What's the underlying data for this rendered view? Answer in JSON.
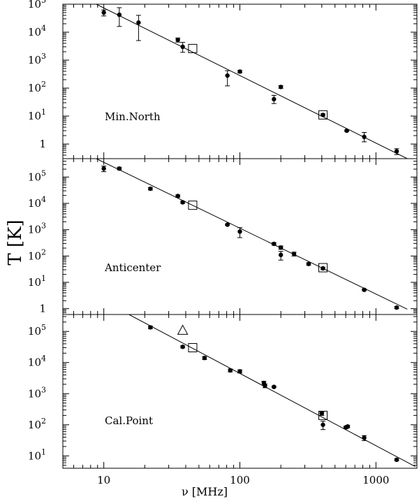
{
  "figure": {
    "ylabel": "T [K]",
    "xlabel": "ν [MHz]"
  },
  "chart_data": [
    {
      "type": "scatter",
      "label": "Min.North",
      "x_scale": "log",
      "y_scale": "log",
      "xlim": [
        5,
        2000
      ],
      "ylim": [
        0.3,
        100000
      ],
      "y_ticks": [
        {
          "value": 1,
          "mantissa": "1",
          "exp": ""
        },
        {
          "value": 10,
          "mantissa": "10",
          "exp": "1"
        },
        {
          "value": 100,
          "mantissa": "10",
          "exp": "2"
        },
        {
          "value": 1000,
          "mantissa": "10",
          "exp": "3"
        },
        {
          "value": 10000,
          "mantissa": "10",
          "exp": "4"
        },
        {
          "value": 100000,
          "mantissa": "10",
          "exp": "5"
        }
      ],
      "fit_line": [
        [
          8.8,
          100000
        ],
        [
          1700,
          0.3
        ]
      ],
      "points": [
        {
          "x": 10,
          "y": 50000,
          "err_lo": 38000,
          "err_hi": 62000
        },
        {
          "x": 13,
          "y": 42000,
          "err_lo": 16000,
          "err_hi": 75000
        },
        {
          "x": 18,
          "y": 22000,
          "err_lo": 5000,
          "err_hi": 40000
        },
        {
          "x": 35,
          "y": 5300,
          "err_lo": 4400,
          "err_hi": 6200
        },
        {
          "x": 38,
          "y": 3000,
          "err_lo": 1900,
          "err_hi": 4300
        },
        {
          "x": 81,
          "y": 280,
          "err_lo": 120,
          "err_hi": 420
        },
        {
          "x": 100,
          "y": 390,
          "err_lo": 350,
          "err_hi": 430
        },
        {
          "x": 178,
          "y": 40,
          "err_lo": 28,
          "err_hi": 55
        },
        {
          "x": 200,
          "y": 110,
          "err_lo": 98,
          "err_hi": 122
        },
        {
          "x": 408,
          "y": 11,
          "err_lo": 10,
          "err_hi": 12
        },
        {
          "x": 610,
          "y": 3,
          "err_lo": 2.8,
          "err_hi": 3.2
        },
        {
          "x": 820,
          "y": 1.8,
          "err_lo": 1.2,
          "err_hi": 2.6
        },
        {
          "x": 1420,
          "y": 0.55,
          "err_lo": 0.42,
          "err_hi": 0.68
        }
      ],
      "squares": [
        {
          "x": 45,
          "y": 2600
        },
        {
          "x": 408,
          "y": 11
        }
      ],
      "triangles": []
    },
    {
      "type": "scatter",
      "label": "Anticenter",
      "x_scale": "log",
      "y_scale": "log",
      "xlim": [
        5,
        2000
      ],
      "ylim": [
        0.6,
        500000
      ],
      "y_ticks": [
        {
          "value": 1,
          "mantissa": "1",
          "exp": ""
        },
        {
          "value": 10,
          "mantissa": "10",
          "exp": "1"
        },
        {
          "value": 100,
          "mantissa": "10",
          "exp": "2"
        },
        {
          "value": 1000,
          "mantissa": "10",
          "exp": "3"
        },
        {
          "value": 10000,
          "mantissa": "10",
          "exp": "4"
        },
        {
          "value": 100000,
          "mantissa": "10",
          "exp": "5"
        }
      ],
      "fit_line": [
        [
          8.8,
          500000
        ],
        [
          1700,
          0.95
        ]
      ],
      "points": [
        {
          "x": 10,
          "y": 210000,
          "err_lo": 160000,
          "err_hi": 260000
        },
        {
          "x": 13,
          "y": 210000,
          "err_lo": 190000,
          "err_hi": 235000
        },
        {
          "x": 22,
          "y": 36000,
          "err_lo": 32000,
          "err_hi": 40000
        },
        {
          "x": 35,
          "y": 19000,
          "err_lo": 17000,
          "err_hi": 21000
        },
        {
          "x": 38,
          "y": 11000,
          "err_lo": 10000,
          "err_hi": 12000
        },
        {
          "x": 81,
          "y": 1550,
          "err_lo": 1450,
          "err_hi": 1650
        },
        {
          "x": 100,
          "y": 850,
          "err_lo": 500,
          "err_hi": 1200
        },
        {
          "x": 178,
          "y": 290,
          "err_lo": 260,
          "err_hi": 320
        },
        {
          "x": 200,
          "y": 210,
          "err_lo": 180,
          "err_hi": 240
        },
        {
          "x": 200,
          "y": 110,
          "err_lo": 70,
          "err_hi": 150
        },
        {
          "x": 250,
          "y": 120,
          "err_lo": 100,
          "err_hi": 140
        },
        {
          "x": 320,
          "y": 50,
          "err_lo": 45,
          "err_hi": 55
        },
        {
          "x": 408,
          "y": 34,
          "err_lo": 31,
          "err_hi": 37
        },
        {
          "x": 820,
          "y": 5.2,
          "err_lo": 4.8,
          "err_hi": 5.6
        },
        {
          "x": 1420,
          "y": 1.1,
          "err_lo": 1.0,
          "err_hi": 1.2
        }
      ],
      "squares": [
        {
          "x": 45,
          "y": 8500
        },
        {
          "x": 408,
          "y": 36
        }
      ],
      "triangles": []
    },
    {
      "type": "scatter",
      "label": "Cal.Point",
      "x_scale": "log",
      "y_scale": "log",
      "xlim": [
        5,
        2000
      ],
      "ylim": [
        4,
        350000
      ],
      "y_ticks": [
        {
          "value": 10,
          "mantissa": "10",
          "exp": "1"
        },
        {
          "value": 100,
          "mantissa": "10",
          "exp": "2"
        },
        {
          "value": 1000,
          "mantissa": "10",
          "exp": "3"
        },
        {
          "value": 10000,
          "mantissa": "10",
          "exp": "4"
        },
        {
          "value": 100000,
          "mantissa": "10",
          "exp": "5"
        }
      ],
      "fit_line": [
        [
          15.3,
          350000
        ],
        [
          1950,
          4.5
        ]
      ],
      "points": [
        {
          "x": 22,
          "y": 135000,
          "err_lo": 122000,
          "err_hi": 148000
        },
        {
          "x": 38,
          "y": 32000,
          "err_lo": 29500,
          "err_hi": 34500
        },
        {
          "x": 55,
          "y": 14000,
          "err_lo": 12500,
          "err_hi": 15500
        },
        {
          "x": 85,
          "y": 5600,
          "err_lo": 5000,
          "err_hi": 6200
        },
        {
          "x": 100,
          "y": 5200,
          "err_lo": 4600,
          "err_hi": 5800
        },
        {
          "x": 150,
          "y": 2200,
          "err_lo": 1900,
          "err_hi": 2500
        },
        {
          "x": 153,
          "y": 1800,
          "err_lo": 1550,
          "err_hi": 2050
        },
        {
          "x": 178,
          "y": 1650,
          "err_lo": 1550,
          "err_hi": 1750
        },
        {
          "x": 400,
          "y": 230,
          "err_lo": 200,
          "err_hi": 260
        },
        {
          "x": 408,
          "y": 100,
          "err_lo": 70,
          "err_hi": 130
        },
        {
          "x": 600,
          "y": 82,
          "err_lo": 75,
          "err_hi": 89
        },
        {
          "x": 620,
          "y": 88,
          "err_lo": 80,
          "err_hi": 96
        },
        {
          "x": 820,
          "y": 38,
          "err_lo": 31,
          "err_hi": 45
        },
        {
          "x": 1420,
          "y": 7.5,
          "err_lo": 7,
          "err_hi": 8
        }
      ],
      "squares": [
        {
          "x": 45,
          "y": 30000
        },
        {
          "x": 408,
          "y": 200
        }
      ],
      "triangles": [
        {
          "x": 38,
          "y": 110000
        }
      ]
    }
  ]
}
